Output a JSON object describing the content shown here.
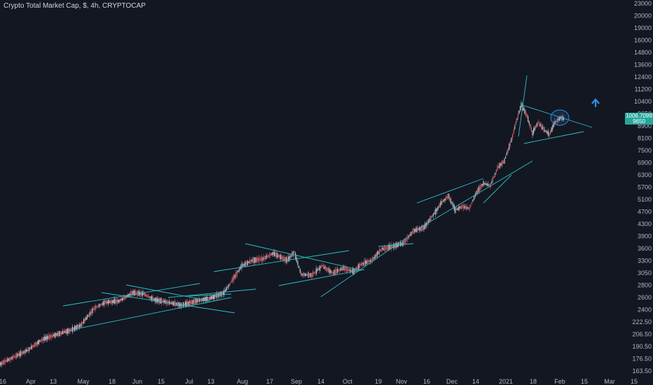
{
  "title": "Crypto Total Market Cap, $, 4h, CRYPTOCAP",
  "colors": {
    "background": "#131722",
    "trendline": "#2bc2c8",
    "up": "#c9cbd2",
    "down": "#d9626a",
    "arrow": "#2f8fe8",
    "axis_text": "#b2b5be",
    "price_badge": "#26a69a"
  },
  "price_badge": {
    "value": "1006.7099",
    "line2": "9650"
  },
  "chart_data": {
    "type": "candlestick",
    "x_ticks": [
      "16",
      "Apr",
      "13",
      "May",
      "18",
      "Jun",
      "15",
      "Jul",
      "13",
      "Aug",
      "17",
      "Sep",
      "14",
      "Oct",
      "19",
      "Nov",
      "16",
      "Dec",
      "14",
      "2021",
      "18",
      "Feb",
      "15",
      "Mar",
      "15"
    ],
    "y_ticks": [
      "23000",
      "20000",
      "19000",
      "16000",
      "14800",
      "13600",
      "12400",
      "11200",
      "10400",
      "9650",
      "8900",
      "8100",
      "7500",
      "6900",
      "6300",
      "5700",
      "5100",
      "4700",
      "4300",
      "3900",
      "3600",
      "3300",
      "3050",
      "2800",
      "2600",
      "2400",
      "222.50",
      "206.50",
      "190.50",
      "176.50",
      "163.50"
    ],
    "price_path": [
      [
        0,
        163.5
      ],
      [
        0.03,
        175
      ],
      [
        0.06,
        200
      ],
      [
        0.09,
        212
      ],
      [
        0.12,
        222.5
      ],
      [
        0.15,
        2550
      ],
      [
        0.18,
        2600
      ],
      [
        0.21,
        2900
      ],
      [
        0.24,
        2650
      ],
      [
        0.27,
        2600
      ],
      [
        0.3,
        2750
      ],
      [
        0.33,
        3050
      ],
      [
        0.36,
        3650
      ],
      [
        0.39,
        3850
      ],
      [
        0.42,
        3700
      ],
      [
        0.45,
        3900
      ],
      [
        0.47,
        3250
      ],
      [
        0.5,
        3350
      ],
      [
        0.53,
        3100
      ],
      [
        0.56,
        3300
      ],
      [
        0.59,
        3600
      ],
      [
        0.62,
        3900
      ],
      [
        0.65,
        4000
      ],
      [
        0.68,
        4700
      ],
      [
        0.71,
        5400
      ],
      [
        0.74,
        5100
      ],
      [
        0.77,
        6300
      ],
      [
        0.79,
        7500
      ],
      [
        0.81,
        9650
      ],
      [
        0.83,
        11200
      ],
      [
        0.86,
        9400
      ],
      [
        0.88,
        8600
      ],
      [
        0.9,
        9650
      ]
    ],
    "annotations": [
      "trendlines",
      "ellipse",
      "up-arrow"
    ]
  }
}
